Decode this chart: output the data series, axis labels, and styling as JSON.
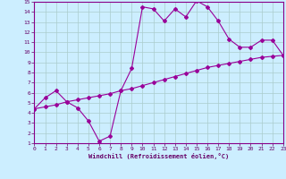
{
  "xlabel": "Windchill (Refroidissement éolien,°C)",
  "x": [
    0,
    1,
    2,
    3,
    4,
    5,
    6,
    7,
    8,
    9,
    10,
    11,
    12,
    13,
    14,
    15,
    16,
    17,
    18,
    19,
    20,
    21,
    22,
    23
  ],
  "y_jagged": [
    4.4,
    5.5,
    6.2,
    5.1,
    4.5,
    3.2,
    1.2,
    1.7,
    6.2,
    8.4,
    14.5,
    14.3,
    13.1,
    14.3,
    13.5,
    15.1,
    14.5,
    13.1,
    11.3,
    10.5,
    10.5,
    11.2,
    11.2,
    9.7
  ],
  "y_linear": [
    4.4,
    4.6,
    4.8,
    5.1,
    5.3,
    5.5,
    5.7,
    5.9,
    6.2,
    6.4,
    6.7,
    7.0,
    7.3,
    7.6,
    7.9,
    8.2,
    8.5,
    8.7,
    8.9,
    9.1,
    9.3,
    9.5,
    9.6,
    9.7
  ],
  "line_color": "#990099",
  "bg_color": "#cceeff",
  "grid_color": "#aacccc",
  "axis_color": "#660066",
  "spine_color": "#880088",
  "ylim": [
    1,
    15
  ],
  "xlim": [
    0,
    23
  ],
  "yticks": [
    1,
    2,
    3,
    4,
    5,
    6,
    7,
    8,
    9,
    10,
    11,
    12,
    13,
    14,
    15
  ],
  "xticks": [
    0,
    1,
    2,
    3,
    4,
    5,
    6,
    7,
    8,
    9,
    10,
    11,
    12,
    13,
    14,
    15,
    16,
    17,
    18,
    19,
    20,
    21,
    22,
    23
  ]
}
